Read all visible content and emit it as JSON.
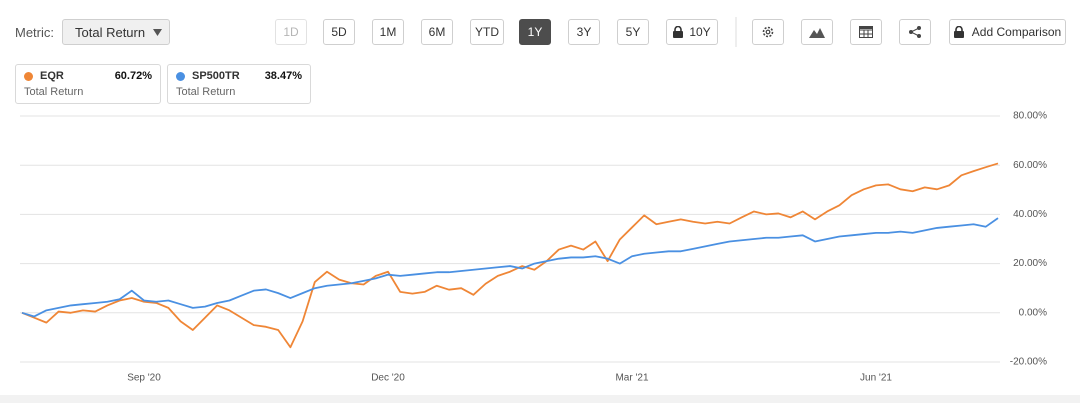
{
  "toolbar": {
    "metric_label": "Metric:",
    "metric_value": "Total Return",
    "ranges": [
      "1D",
      "5D",
      "1M",
      "6M",
      "YTD",
      "1Y",
      "3Y",
      "5Y",
      "10Y"
    ],
    "active_range": 5,
    "disabled_range": 0,
    "locked_range": 8,
    "add_comparison": "Add Comparison"
  },
  "chart_data": {
    "type": "line",
    "metric": "Total Return",
    "categories": [
      null,
      null,
      null,
      null,
      null,
      null,
      null,
      null,
      null,
      null,
      "Sep '20",
      null,
      null,
      null,
      null,
      null,
      null,
      null,
      null,
      null,
      null,
      null,
      null,
      null,
      null,
      null,
      null,
      null,
      null,
      null,
      "Dec '20",
      null,
      null,
      null,
      null,
      null,
      null,
      null,
      null,
      null,
      null,
      null,
      null,
      null,
      null,
      null,
      null,
      null,
      null,
      null,
      "Mar '21",
      null,
      null,
      null,
      null,
      null,
      null,
      null,
      null,
      null,
      null,
      null,
      null,
      null,
      null,
      null,
      null,
      null,
      null,
      null,
      "Jun '21",
      null,
      null,
      null,
      null,
      null,
      null,
      null,
      null,
      null,
      null
    ],
    "series": [
      {
        "name": "EQR",
        "color": "#ef8636",
        "legend_value": "60.72%",
        "values": [
          0,
          -2,
          -4,
          0.5,
          0,
          1,
          0.5,
          3,
          5,
          6,
          4.5,
          4,
          2,
          -3.5,
          -7,
          -2,
          3,
          1,
          -2,
          -5,
          -5.7,
          -7,
          -14,
          -3.5,
          12.5,
          16.7,
          13.5,
          12,
          11.5,
          15,
          16.7,
          8.5,
          7.8,
          8.5,
          11,
          9.4,
          10,
          7.3,
          11.8,
          15,
          16.7,
          19,
          17.5,
          21,
          25.7,
          27.3,
          25.7,
          29,
          21,
          29.8,
          34.7,
          39.6,
          36,
          37,
          38,
          37,
          36.3,
          37,
          36.3,
          38.8,
          41.2,
          40,
          40.4,
          38.8,
          41.2,
          38,
          41.2,
          43.7,
          47.8,
          50.2,
          51.8,
          52.2,
          50.2,
          49.4,
          51,
          50.2,
          51.8,
          55.9,
          57.6,
          59.2,
          60.72
        ]
      },
      {
        "name": "SP500TR",
        "color": "#4a90e2",
        "legend_value": "38.47%",
        "values": [
          0,
          -1.5,
          1,
          2,
          3,
          3.5,
          4,
          4.5,
          5.5,
          9,
          5,
          4.5,
          5,
          3.5,
          2,
          2.5,
          4,
          5,
          7,
          9,
          9.5,
          8,
          6,
          8,
          10,
          11,
          11.5,
          12,
          13,
          14,
          15.5,
          15,
          15.5,
          16,
          16.5,
          16.5,
          17,
          17.5,
          18,
          18.5,
          19,
          18,
          20,
          21,
          22,
          22.5,
          22.5,
          23,
          22,
          20,
          23,
          24,
          24.5,
          25,
          25,
          26,
          27,
          28,
          29,
          29.5,
          30,
          30.5,
          30.5,
          31,
          31.5,
          29,
          30,
          31,
          31.5,
          32,
          32.5,
          32.5,
          33,
          32.5,
          33.5,
          34.5,
          35,
          35.5,
          36,
          35,
          38.47
        ]
      }
    ],
    "ylim": [
      -20,
      80
    ],
    "yticks": [
      {
        "value": -20,
        "label": "-20.00%"
      },
      {
        "value": 0,
        "label": "0.00%"
      },
      {
        "value": 20,
        "label": "20.00%"
      },
      {
        "value": 40,
        "label": "40.00%"
      },
      {
        "value": 60,
        "label": "60.00%"
      },
      {
        "value": 80,
        "label": "80.00%"
      }
    ],
    "grid": true
  }
}
